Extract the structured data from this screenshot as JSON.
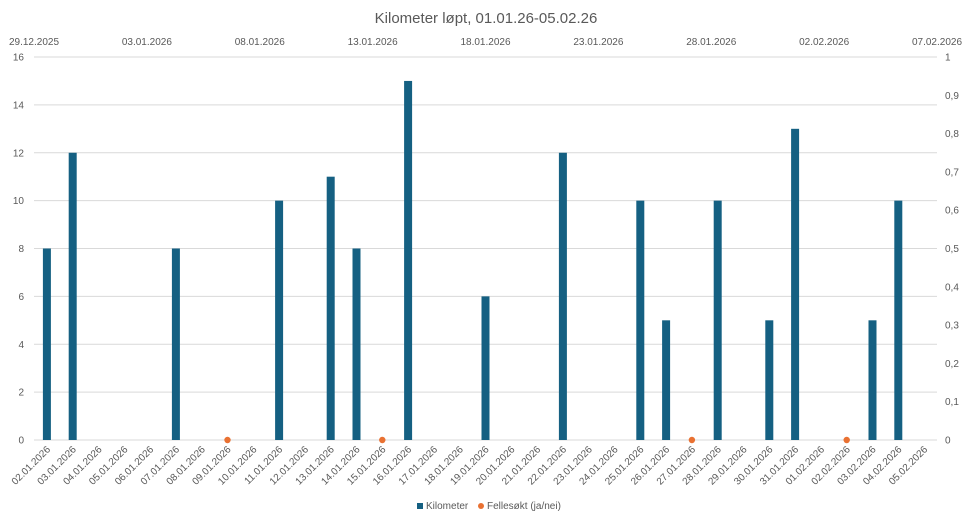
{
  "chart_data": {
    "type": "bar",
    "title": "Kilometer løpt, 01.01.26-05.02.26",
    "categories": [
      "02.01.2026",
      "03.01.2026",
      "04.01.2026",
      "05.01.2026",
      "06.01.2026",
      "07.01.2026",
      "08.01.2026",
      "09.01.2026",
      "10.01.2026",
      "11.01.2026",
      "12.01.2026",
      "13.01.2026",
      "14.01.2026",
      "15.01.2026",
      "16.01.2026",
      "17.01.2026",
      "18.01.2026",
      "19.01.2026",
      "20.01.2026",
      "21.01.2026",
      "22.01.2026",
      "23.01.2026",
      "24.01.2026",
      "25.01.2026",
      "26.01.2026",
      "27.01.2026",
      "28.01.2026",
      "29.01.2026",
      "30.01.2026",
      "31.01.2026",
      "01.02.2026",
      "02.02.2026",
      "03.02.2026",
      "04.02.2026",
      "05.02.2026"
    ],
    "series": [
      {
        "name": "Kilometer",
        "type": "bar",
        "axis": "left",
        "color": "#156082",
        "values": [
          8,
          12,
          0,
          0,
          0,
          8,
          0,
          0,
          0,
          10,
          0,
          11,
          8,
          0,
          15,
          0,
          0,
          6,
          0,
          0,
          12,
          0,
          0,
          10,
          5,
          0,
          10,
          0,
          5,
          13,
          0,
          0,
          5,
          10,
          0
        ]
      },
      {
        "name": "Fellesøkt (ja/nei)",
        "type": "scatter",
        "axis": "right",
        "color": "#e97132",
        "x": [
          "09.01.2026",
          "15.01.2026",
          "27.01.2026",
          "02.02.2026"
        ],
        "values": [
          0,
          0,
          0,
          0
        ]
      }
    ],
    "y_left": {
      "min": 0,
      "max": 16,
      "ticks": [
        "0",
        "2",
        "4",
        "6",
        "8",
        "10",
        "12",
        "14",
        "16"
      ]
    },
    "y_right": {
      "min": 0,
      "max": 1,
      "ticks": [
        "0",
        "0,1",
        "0,2",
        "0,3",
        "0,4",
        "0,5",
        "0,6",
        "0,7",
        "0,8",
        "0,9",
        "1"
      ]
    },
    "x_top": {
      "ticks": [
        "29.12.2025",
        "03.01.2026",
        "08.01.2026",
        "13.01.2026",
        "18.01.2026",
        "23.01.2026",
        "28.01.2026",
        "02.02.2026",
        "07.02.2026"
      ]
    },
    "grid": true,
    "legend_position": "bottom"
  }
}
